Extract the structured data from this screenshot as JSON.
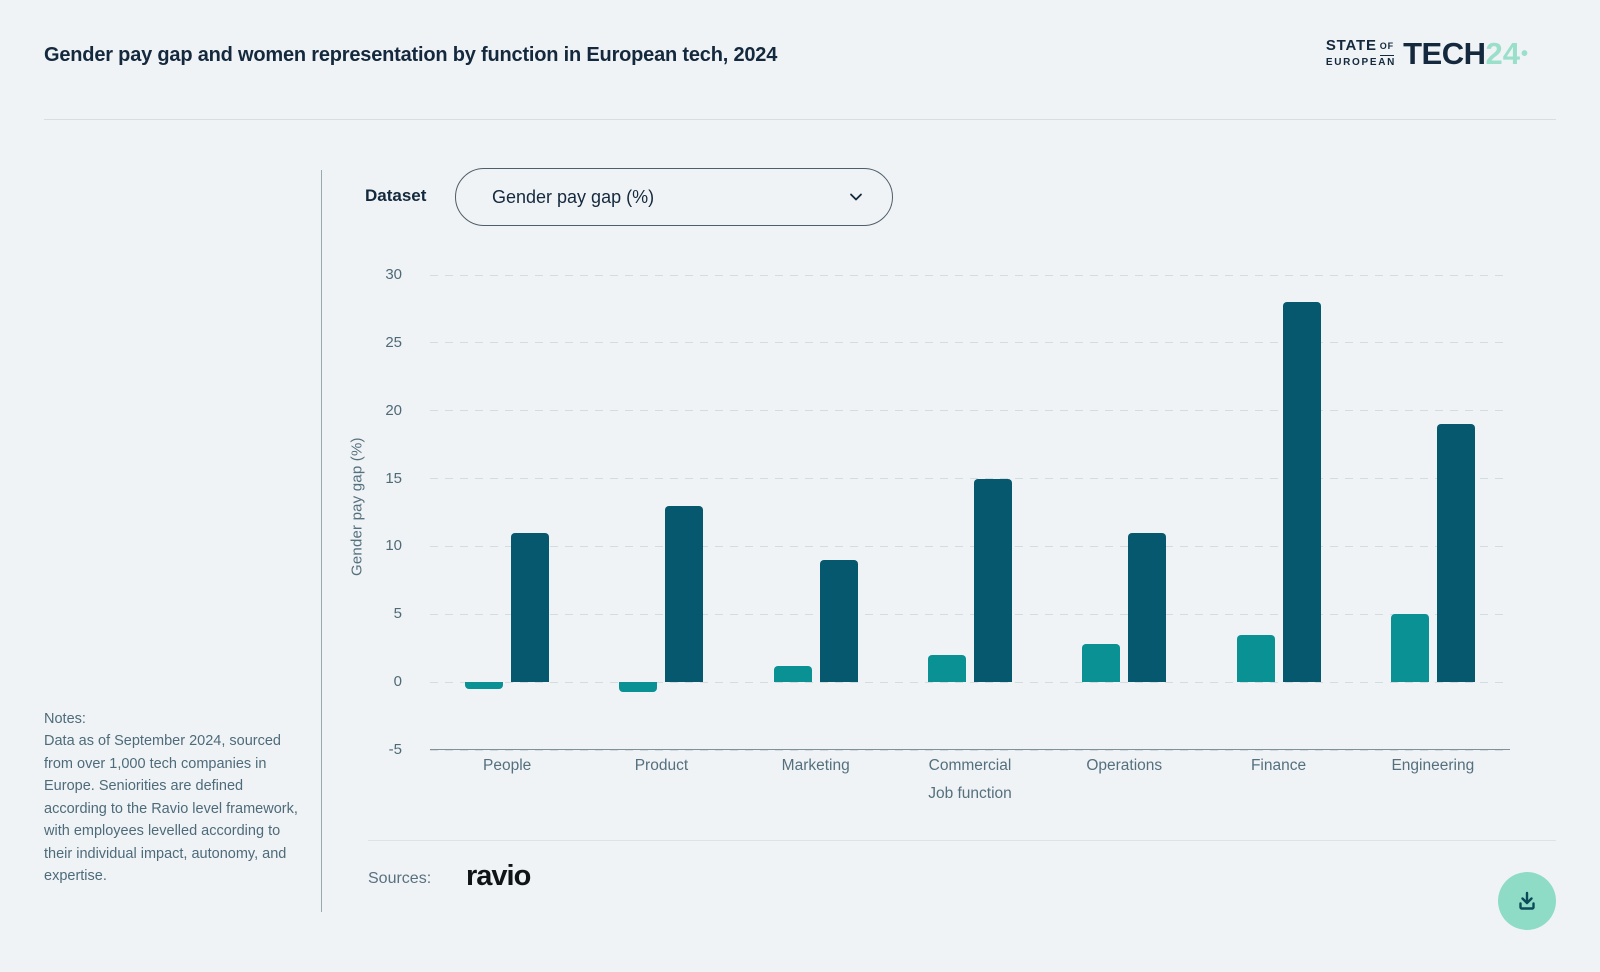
{
  "header": {
    "title": "Gender pay gap and women representation by function in European tech, 2024",
    "logo": {
      "state": "STATE",
      "of": "OF",
      "european": "EUROPEAN",
      "tech": "TECH",
      "year": "24",
      "dot": "•"
    }
  },
  "controls": {
    "dataset_label": "Dataset",
    "dataset_value": "Gender pay gap (%)",
    "chevron_icon": "chevron-down"
  },
  "notes": {
    "heading": "Notes:",
    "body": "Data as of September 2024, sourced from over 1,000 tech companies in Europe. Seniorities are defined according to the Ravio level framework, with employees levelled according to their individual impact, autonomy, and expertise."
  },
  "sources": {
    "label": "Sources:",
    "name": "ravio"
  },
  "download_button": {
    "icon": "download"
  },
  "colors": {
    "background": "#f0f3f5",
    "navy_text": "#14293d",
    "teal_bar": "#0a9193",
    "dark_teal_bar": "#05586e",
    "mint_accent": "#8fdcc6",
    "grey_text": "#54707e",
    "gridline": "#d3dcdf",
    "axis_line": "#7f929c"
  },
  "chart_data": {
    "type": "bar",
    "title": "Gender pay gap and women representation by function in European tech, 2024",
    "categories": [
      "People",
      "Product",
      "Marketing",
      "Commercial",
      "Operations",
      "Finance",
      "Engineering"
    ],
    "series": [
      {
        "name": "teal-series",
        "color": "#0a9193",
        "values": [
          -0.5,
          -0.7,
          1.2,
          2,
          2.8,
          3.5,
          5
        ]
      },
      {
        "name": "dark-teal-series",
        "color": "#05586e",
        "values": [
          11,
          13,
          9,
          15,
          11,
          28,
          19
        ]
      }
    ],
    "xlabel": "Job function",
    "ylabel": "Gender pay gap (%)",
    "ylim": [
      -5,
      30
    ],
    "yticks": [
      30,
      25,
      20,
      15,
      10,
      5,
      0,
      -5
    ],
    "grid": "horizontal-dashed",
    "legend": "none"
  }
}
